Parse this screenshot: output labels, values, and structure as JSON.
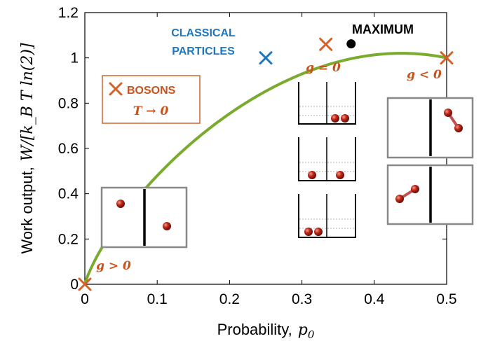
{
  "chart_data": {
    "type": "line",
    "xlabel": "Probability,",
    "xlabel_symbol": "p",
    "xlabel_sub": "0",
    "ylabel": "Work output,",
    "ylabel_math": "W/[k_B T ln(2)]",
    "xlim": [
      0,
      0.5
    ],
    "ylim": [
      0,
      1.2
    ],
    "x_ticks": [
      "0",
      "0.1",
      "0.2",
      "0.3",
      "0.4",
      "0.5"
    ],
    "y_ticks": [
      "0",
      "0.2",
      "0.4",
      "0.6",
      "0.8",
      "1",
      "1.2"
    ],
    "series": [
      {
        "color": "#7aab2f",
        "function": "W = -(p log2 p + (1-p) log2(1-p)) / ln2 scaled",
        "x_range": [
          0,
          0.5
        ]
      }
    ],
    "points": [
      {
        "x": 0,
        "y": 0,
        "marker": "x",
        "color": "#d4622a",
        "label": "g > 0"
      },
      {
        "x": 0.25,
        "y": 1.0,
        "marker": "x",
        "color": "#1f77c0",
        "label": ""
      },
      {
        "x": 0.333,
        "y": 1.06,
        "marker": "x",
        "color": "#d4622a",
        "label": "g = 0"
      },
      {
        "x": 0.368,
        "y": 1.062,
        "marker": "dot",
        "color": "#000000",
        "label": ""
      },
      {
        "x": 0.5,
        "y": 1.0,
        "marker": "x",
        "color": "#d4622a",
        "label": "g < 0"
      }
    ],
    "annotations": {
      "classical": [
        "CLASSICAL",
        "PARTICLES"
      ],
      "maximum": "MAXIMUM",
      "bosons": "BOSONS",
      "bosons_limit": "T → 0",
      "g_pos": "g > 0",
      "g_zero": "g = 0",
      "g_neg": "g < 0"
    },
    "colors": {
      "curve": "#7aab2f",
      "orange": "#d4622a",
      "blue": "#1f77c0"
    }
  }
}
